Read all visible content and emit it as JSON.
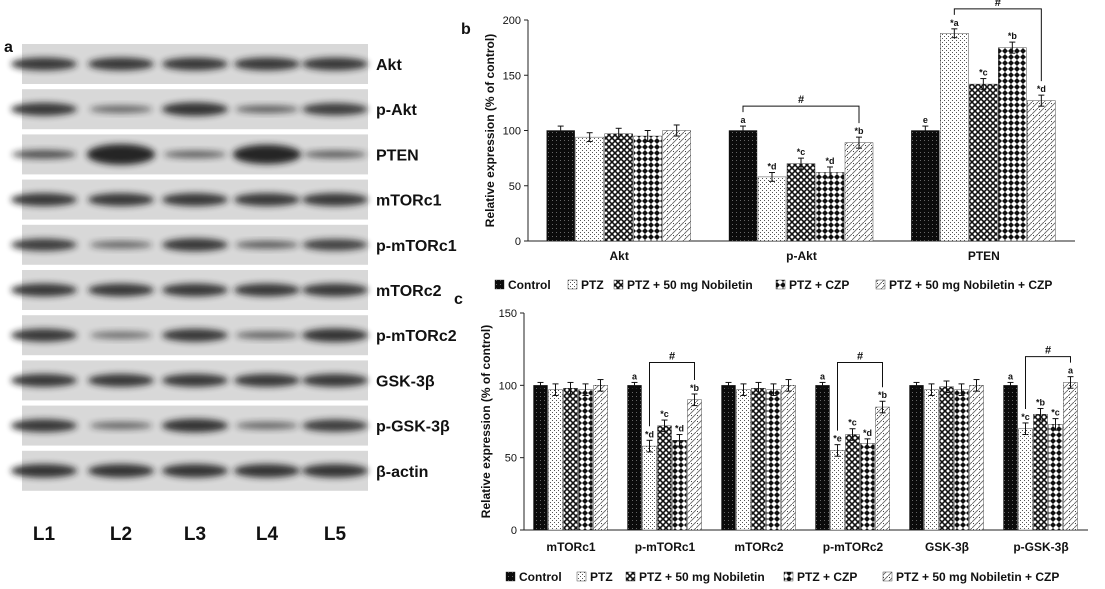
{
  "panel_a": {
    "label": "a",
    "proteins": [
      "Akt",
      "p-Akt",
      "PTEN",
      "mTORc1",
      "p-mTORc1",
      "mTORc2",
      "p-mTORc2",
      "GSK-3β",
      "p-GSK-3β",
      "β-actin"
    ],
    "lanes": [
      "L1",
      "L2",
      "L3",
      "L4",
      "L5"
    ],
    "band_intensity": [
      [
        1.0,
        1.0,
        1.0,
        1.0,
        1.0
      ],
      [
        1.0,
        0.45,
        1.05,
        0.55,
        0.95
      ],
      [
        0.7,
        1.6,
        0.5,
        1.5,
        0.55
      ],
      [
        1.0,
        1.0,
        1.0,
        1.0,
        1.0
      ],
      [
        0.95,
        0.45,
        1.0,
        0.6,
        0.9
      ],
      [
        1.0,
        1.0,
        1.0,
        1.0,
        1.0
      ],
      [
        1.0,
        0.35,
        1.0,
        0.5,
        1.05
      ],
      [
        1.0,
        1.0,
        1.0,
        1.0,
        1.0
      ],
      [
        1.0,
        0.45,
        1.05,
        0.45,
        0.95
      ],
      [
        1.05,
        1.05,
        1.05,
        1.05,
        1.05
      ]
    ]
  },
  "chart_data": [
    {
      "panel": "b",
      "type": "bar",
      "title": "",
      "ylabel": "Relative expression (% of control)",
      "xlabel": "",
      "ylim": [
        0,
        200
      ],
      "yticks": [
        0,
        50,
        100,
        150,
        200
      ],
      "categories": [
        "Akt",
        "p-Akt",
        "PTEN"
      ],
      "series": [
        {
          "name": "Control",
          "values": [
            100,
            100,
            100
          ],
          "errors": [
            4,
            4,
            4
          ],
          "labels": [
            "",
            "a",
            "e"
          ]
        },
        {
          "name": "PTZ",
          "values": [
            94,
            58,
            188
          ],
          "errors": [
            4,
            4,
            4
          ],
          "labels": [
            "",
            "*d",
            "*a"
          ]
        },
        {
          "name": "PTZ + 50 mg Nobiletin",
          "values": [
            97,
            70,
            142
          ],
          "errors": [
            5,
            5,
            5
          ],
          "labels": [
            "",
            "*c",
            "*c"
          ]
        },
        {
          "name": "PTZ + CZP",
          "values": [
            95,
            62,
            175
          ],
          "errors": [
            5,
            5,
            5
          ],
          "labels": [
            "",
            "*d",
            "*b"
          ]
        },
        {
          "name": "PTZ + 50 mg Nobiletin + CZP",
          "values": [
            100,
            89,
            127
          ],
          "errors": [
            5,
            5,
            5
          ],
          "labels": [
            "",
            "*b",
            "*d"
          ]
        }
      ],
      "significance": [
        {
          "category": "p-Akt",
          "from_series": 0,
          "to_series": 4,
          "label": "#"
        },
        {
          "category": "PTEN",
          "from_series": 1,
          "to_series": 4,
          "label": "#"
        }
      ],
      "legend_position": "bottom"
    },
    {
      "panel": "c",
      "type": "bar",
      "title": "",
      "ylabel": "Relative expression (% of control)",
      "xlabel": "",
      "ylim": [
        0,
        150
      ],
      "yticks": [
        0,
        50,
        100,
        150
      ],
      "categories": [
        "mTORc1",
        "p-mTORc1",
        "mTORc2",
        "p-mTORc2",
        "GSK-3β",
        "p-GSK-3β"
      ],
      "series": [
        {
          "name": "Control",
          "values": [
            100,
            100,
            100,
            100,
            100,
            100
          ],
          "errors": [
            2,
            2,
            2,
            2,
            2,
            2
          ],
          "labels": [
            "",
            "a",
            "",
            "a",
            "",
            "a"
          ]
        },
        {
          "name": "PTZ",
          "values": [
            97,
            58,
            97,
            55,
            97,
            70
          ],
          "errors": [
            4,
            4,
            4,
            4,
            4,
            4
          ],
          "labels": [
            "",
            "*d",
            "",
            "*e",
            "",
            "*c"
          ]
        },
        {
          "name": "PTZ + 50 mg Nobiletin",
          "values": [
            98,
            72,
            98,
            66,
            99,
            80
          ],
          "errors": [
            4,
            4,
            4,
            4,
            4,
            4
          ],
          "labels": [
            "",
            "*c",
            "",
            "*c",
            "",
            "*b"
          ]
        },
        {
          "name": "PTZ + CZP",
          "values": [
            97,
            62,
            97,
            60,
            97,
            73
          ],
          "errors": [
            4,
            4,
            4,
            3,
            4,
            4
          ],
          "labels": [
            "",
            "*d",
            "",
            "*d",
            "",
            "*c"
          ]
        },
        {
          "name": "PTZ + 50 mg Nobiletin + CZP",
          "values": [
            100,
            90,
            100,
            85,
            100,
            102
          ],
          "errors": [
            4,
            4,
            4,
            4,
            4,
            4
          ],
          "labels": [
            "",
            "*b",
            "",
            "*b",
            "",
            "a"
          ]
        }
      ],
      "significance": [
        {
          "category": "p-mTORc1",
          "from_series": 1,
          "to_series": 4,
          "label": "#"
        },
        {
          "category": "p-mTORc2",
          "from_series": 1,
          "to_series": 4,
          "label": "#"
        },
        {
          "category": "p-GSK-3β",
          "from_series": 1,
          "to_series": 4,
          "label": "#"
        }
      ],
      "legend_position": "bottom"
    }
  ],
  "legend": {
    "b": [
      "Control",
      "PTZ",
      "PTZ + 50 mg Nobiletin",
      "PTZ + CZP",
      "PTZ + 50 mg Nobiletin + CZP"
    ],
    "c": [
      "Control",
      "PTZ",
      "PTZ + 50 mg Nobiletin",
      "PTZ + CZP",
      "PTZ + 50 mg Nobiletin + CZP"
    ]
  },
  "colors": {
    "bar_stroke": "#1a1a1a",
    "text": "#111111",
    "blot_bg": "#d8d8d8",
    "band": "#1e1e1e"
  }
}
